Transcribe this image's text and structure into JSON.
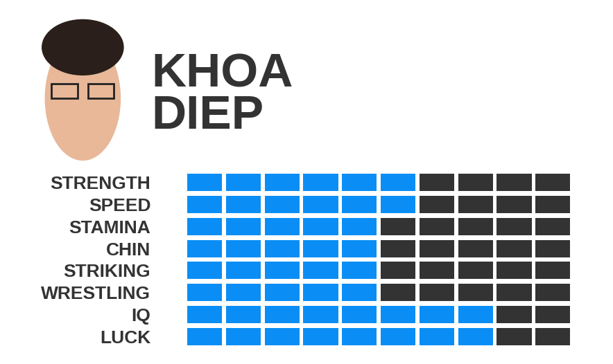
{
  "chart_data": {
    "type": "bar",
    "orientation": "horizontal",
    "title": "KHOA\nDIEP",
    "categories": [
      "STRENGTH",
      "SPEED",
      "STAMINA",
      "CHIN",
      "STRIKING",
      "WRESTLING",
      "IQ",
      "LUCK"
    ],
    "values": [
      6,
      6,
      5,
      5,
      5,
      5,
      8,
      8
    ],
    "color": "#0a8ef5",
    "xlim": [
      0,
      10
    ],
    "xticks": [
      0,
      1,
      2,
      3,
      4,
      5,
      6,
      7,
      8,
      9,
      10
    ],
    "tick_labels": "y"
  }
}
